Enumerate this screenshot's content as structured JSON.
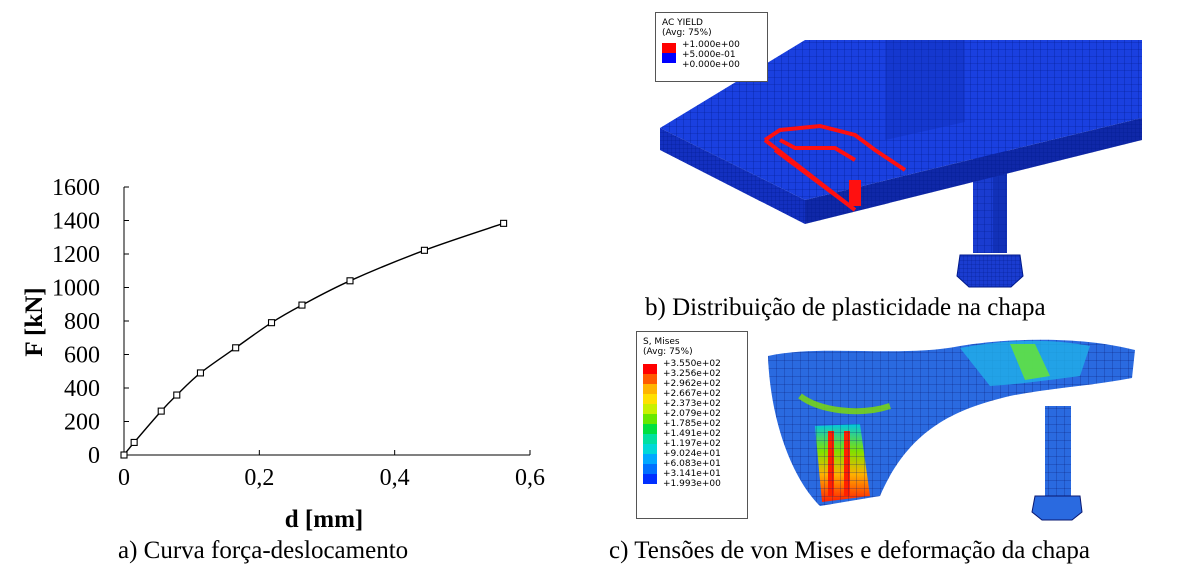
{
  "chart_data": {
    "type": "line",
    "title": "",
    "xlabel": "d [mm]",
    "ylabel": "F [kN]",
    "xlim": [
      0,
      0.6
    ],
    "ylim": [
      0,
      1600
    ],
    "x_ticks": [
      "0",
      "0,2",
      "0,4",
      "0,6"
    ],
    "y_ticks": [
      "0",
      "200",
      "400",
      "600",
      "800",
      "1000",
      "1200",
      "1400",
      "1600"
    ],
    "grid": false,
    "series": [
      {
        "marker": "square",
        "x": [
          0,
          0.015,
          0.055,
          0.078,
          0.113,
          0.165,
          0.218,
          0.263,
          0.334,
          0.444,
          0.561
        ],
        "y": [
          0,
          75,
          262,
          358,
          490,
          640,
          790,
          895,
          1040,
          1222,
          1383
        ]
      }
    ]
  },
  "captions": {
    "a": "a) Curva força-deslocamento",
    "b": "b) Distribuição de plasticidade na chapa",
    "c": "c) Tensões de von Mises e deformação da chapa"
  },
  "legend_ac": {
    "title1": "AC YIELD",
    "title2": "(Avg: 75%)",
    "entries": [
      "+1.000e+00",
      "+5.000e-01",
      "+0.000e+00"
    ],
    "colors": [
      "#ff0000",
      "#0000ff"
    ]
  },
  "legend_mises": {
    "title1": "S, Mises",
    "title2": "(Avg: 75%)",
    "entries": [
      "+3.550e+02",
      "+3.256e+02",
      "+2.962e+02",
      "+2.667e+02",
      "+2.373e+02",
      "+2.079e+02",
      "+1.785e+02",
      "+1.491e+02",
      "+1.197e+02",
      "+9.024e+01",
      "+6.083e+01",
      "+3.141e+01",
      "+1.993e+00"
    ],
    "colors": [
      "#ff0000",
      "#ff5a00",
      "#ffb400",
      "#ffe000",
      "#c8f000",
      "#66e800",
      "#00e040",
      "#00e0a0",
      "#00d8d8",
      "#00a8ff",
      "#0070ff",
      "#0030ff"
    ]
  }
}
